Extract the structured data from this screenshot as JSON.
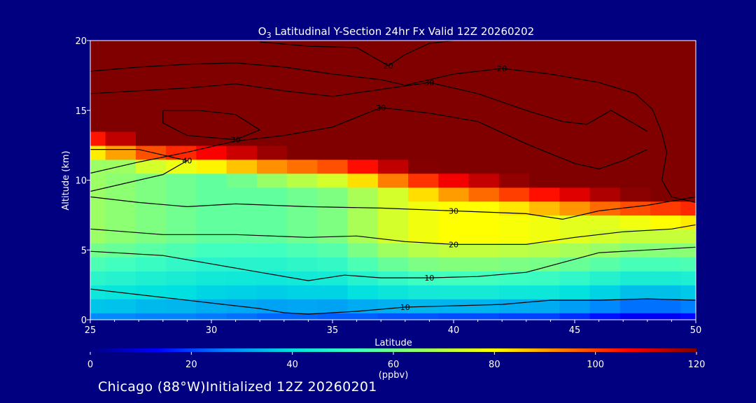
{
  "chart_data": {
    "type": "heatmap",
    "title": "O3 Latitudinal Y-Section 24hr  Fx Valid 12Z 20260202",
    "title_parts": {
      "pre": "O",
      "sub": "3",
      "post": " Latitudinal Y-Section 24hr  Fx Valid 12Z 20260202"
    },
    "xlabel": "Latitude",
    "ylabel": "Altitude (km)",
    "xlim": [
      25,
      50
    ],
    "ylim": [
      0,
      20
    ],
    "x_ticks": [
      25,
      30,
      35,
      40,
      45,
      50
    ],
    "y_ticks": [
      0,
      5,
      10,
      15,
      20
    ],
    "colorbar": {
      "min": 0,
      "max": 120,
      "ticks": [
        0,
        20,
        40,
        60,
        80,
        100,
        120
      ],
      "units": "(ppbv)",
      "colors": [
        "#000080",
        "#0000ff",
        "#0080ff",
        "#00e0e0",
        "#40ffc0",
        "#a0ff60",
        "#ffff00",
        "#ff8000",
        "#ff0000",
        "#800000"
      ]
    },
    "field": {
      "latitudes": [
        25,
        26.25,
        27.5,
        28.75,
        30,
        31.25,
        32.5,
        33.75,
        35,
        36.25,
        37.5,
        38.75,
        40,
        41.25,
        42.5,
        43.75,
        45,
        46.25,
        47.5,
        48.75,
        50
      ],
      "altitudes": [
        0,
        1,
        2,
        3,
        4,
        5,
        6,
        7,
        8,
        9,
        10,
        11,
        12,
        13,
        14,
        15,
        16,
        17,
        18,
        19,
        20
      ],
      "surface_ppbv": [
        28,
        28,
        27,
        27,
        26,
        25,
        24,
        24,
        23,
        23,
        22,
        22,
        21,
        21,
        20,
        20,
        18,
        15,
        12,
        12,
        14
      ],
      "plateau_ppbv": [
        66,
        64,
        62,
        60,
        58,
        58,
        58,
        60,
        62,
        68,
        74,
        78,
        80,
        80,
        79,
        78,
        76,
        74,
        72,
        72,
        72
      ],
      "tropopause_km": [
        12.8,
        12.4,
        12.0,
        11.8,
        11.6,
        11.4,
        11.2,
        11.1,
        11.0,
        10.8,
        10.5,
        10.2,
        9.9,
        9.6,
        9.3,
        9.0,
        8.7,
        8.4,
        8.2,
        8.1,
        8.0
      ]
    },
    "contours": [
      {
        "label": "10",
        "points": [
          [
            25,
            2.2
          ],
          [
            27,
            1.8
          ],
          [
            30,
            1.2
          ],
          [
            32,
            0.8
          ],
          [
            33,
            0.5
          ],
          [
            34,
            0.4
          ],
          [
            36,
            0.6
          ],
          [
            38,
            0.9
          ],
          [
            40,
            1.0
          ],
          [
            42,
            1.1
          ],
          [
            44,
            1.4
          ],
          [
            46,
            1.4
          ],
          [
            48,
            1.5
          ],
          [
            50,
            1.4
          ]
        ]
      },
      {
        "label": "10",
        "points": [
          [
            25,
            4.9
          ],
          [
            28,
            4.6
          ],
          [
            30,
            4.0
          ],
          [
            32,
            3.4
          ],
          [
            34,
            2.8
          ],
          [
            35.5,
            3.2
          ],
          [
            37,
            3.0
          ],
          [
            39,
            3.0
          ],
          [
            41,
            3.1
          ],
          [
            43,
            3.4
          ],
          [
            44.5,
            4.1
          ],
          [
            46,
            4.8
          ],
          [
            48,
            5.0
          ],
          [
            50,
            5.2
          ]
        ]
      },
      {
        "label": "20",
        "points": [
          [
            25,
            6.5
          ],
          [
            28,
            6.1
          ],
          [
            31,
            6.1
          ],
          [
            34,
            5.9
          ],
          [
            36,
            6.0
          ],
          [
            38,
            5.6
          ],
          [
            40,
            5.4
          ],
          [
            43,
            5.4
          ],
          [
            45,
            5.9
          ],
          [
            47,
            6.3
          ],
          [
            49,
            6.5
          ],
          [
            50,
            6.8
          ]
        ]
      },
      {
        "label": "30",
        "points": [
          [
            25,
            8.8
          ],
          [
            27,
            8.4
          ],
          [
            29,
            8.1
          ],
          [
            31,
            8.3
          ],
          [
            34,
            8.1
          ],
          [
            37,
            8.0
          ],
          [
            40,
            7.8
          ],
          [
            43,
            7.6
          ],
          [
            44.5,
            7.2
          ],
          [
            46,
            7.8
          ],
          [
            48,
            8.2
          ],
          [
            50,
            8.8
          ]
        ]
      },
      {
        "label": "40",
        "points": [
          [
            25,
            9.2
          ],
          [
            26.5,
            9.8
          ],
          [
            28,
            10.4
          ],
          [
            29,
            11.4
          ],
          [
            27,
            12.2
          ],
          [
            25,
            12.2
          ]
        ]
      },
      {
        "label": "30",
        "points": [
          [
            25,
            10.5
          ],
          [
            27,
            11.3
          ],
          [
            29,
            12.0
          ],
          [
            31,
            12.8
          ],
          [
            33,
            13.2
          ],
          [
            35,
            13.8
          ],
          [
            36,
            14.5
          ],
          [
            37,
            15.2
          ],
          [
            39,
            14.8
          ],
          [
            41,
            14.2
          ],
          [
            43,
            12.6
          ],
          [
            45,
            11.2
          ],
          [
            46,
            10.8
          ],
          [
            47,
            11.4
          ],
          [
            48,
            12.2
          ]
        ]
      },
      {
        "label": "30",
        "points": [
          [
            28,
            15.0
          ],
          [
            29.5,
            15.0
          ],
          [
            31,
            14.7
          ],
          [
            32,
            13.6
          ],
          [
            31,
            12.9
          ],
          [
            29,
            13.2
          ],
          [
            28,
            14.1
          ],
          [
            28,
            15.0
          ]
        ]
      },
      {
        "label": "30",
        "points": [
          [
            25,
            16.2
          ],
          [
            27,
            16.4
          ],
          [
            29,
            16.6
          ],
          [
            31,
            16.9
          ],
          [
            33,
            16.4
          ],
          [
            35,
            16.0
          ],
          [
            37,
            16.5
          ],
          [
            39,
            17.0
          ],
          [
            41,
            16.2
          ],
          [
            43,
            15.0
          ],
          [
            44.5,
            14.2
          ],
          [
            45.5,
            14.0
          ],
          [
            46.5,
            15.0
          ],
          [
            47,
            14.5
          ],
          [
            48,
            13.5
          ]
        ]
      },
      {
        "label": "20",
        "points": [
          [
            25,
            17.8
          ],
          [
            27,
            18.1
          ],
          [
            29,
            18.3
          ],
          [
            31,
            18.4
          ],
          [
            33,
            18.1
          ],
          [
            35,
            17.6
          ],
          [
            37,
            17.2
          ],
          [
            38,
            16.8
          ],
          [
            40,
            17.6
          ],
          [
            42,
            18.0
          ],
          [
            44,
            17.6
          ],
          [
            46,
            17.0
          ],
          [
            47.5,
            16.2
          ],
          [
            48.2,
            15.1
          ],
          [
            48.6,
            13.4
          ],
          [
            48.8,
            12.0
          ],
          [
            48.6,
            10.0
          ],
          [
            49.0,
            8.8
          ],
          [
            50,
            8.4
          ]
        ]
      },
      {
        "label": "20",
        "points": [
          [
            32,
            19.9
          ],
          [
            34,
            19.6
          ],
          [
            36,
            19.5
          ],
          [
            37.3,
            18.2
          ],
          [
            38,
            19.0
          ],
          [
            39,
            19.8
          ],
          [
            40,
            20
          ]
        ]
      }
    ]
  },
  "footer": "Chicago (88°W)Initialized 12Z 20260201"
}
